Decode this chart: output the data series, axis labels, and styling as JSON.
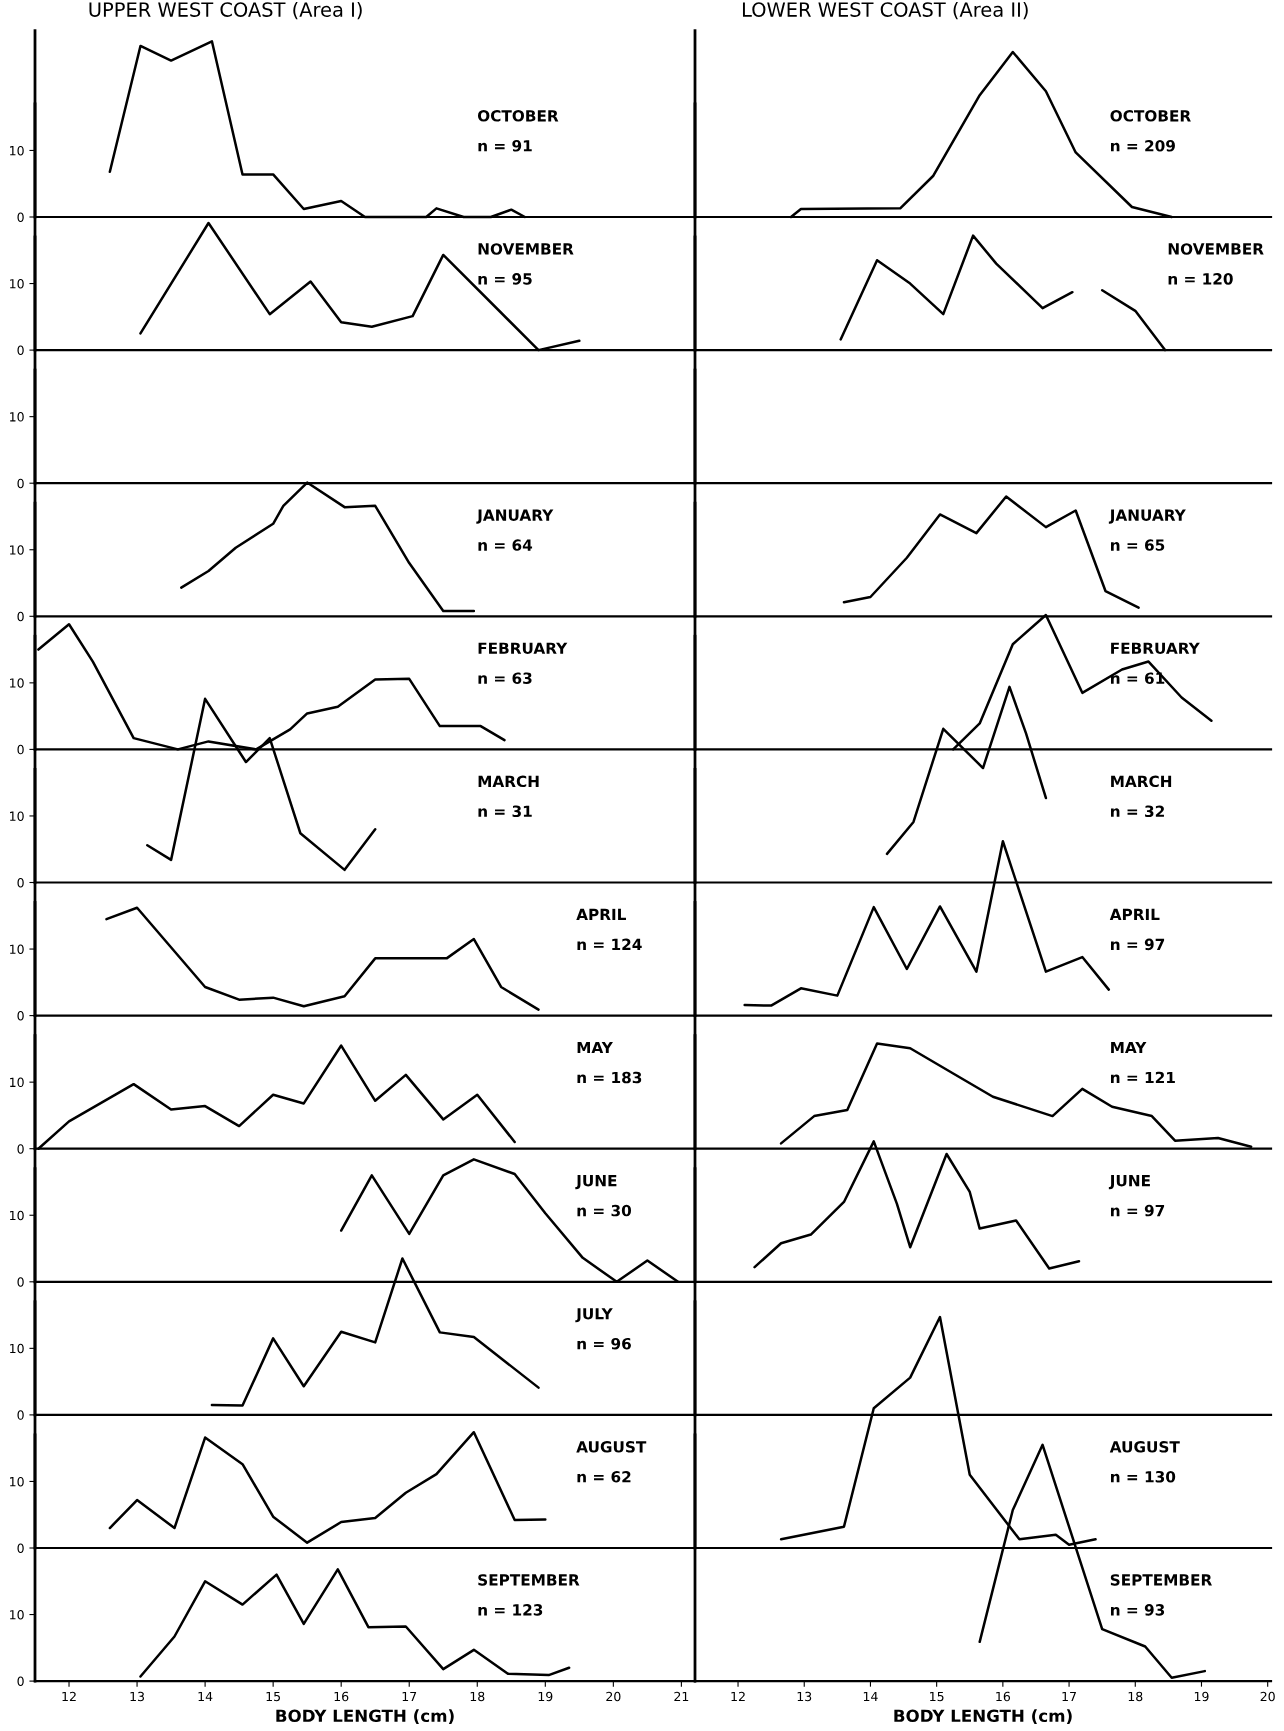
{
  "chart_data": [
    {
      "type": "line",
      "title": "UPPER WEST COAST (Area I)",
      "annotations": [
        "OCTOBER",
        "n = 91"
      ],
      "x": [
        12.6,
        13.05,
        13.5,
        14.1,
        14.55,
        15.0,
        15.45,
        16.0,
        16.35,
        17.25,
        17.4,
        17.8,
        18.2,
        18.5,
        18.7
      ],
      "values": [
        6.8,
        25.7,
        23.5,
        26.4,
        6.4,
        6.4,
        1.2,
        2.4,
        0,
        0,
        1.3,
        0,
        0,
        1.1,
        0
      ],
      "color": "#000000",
      "xlim": [
        11.5,
        21.2
      ],
      "ylim": [
        0,
        28
      ],
      "yticks": [
        0,
        10
      ],
      "tick_labels": "y"
    },
    {
      "type": "line",
      "annotations": [
        "NOVEMBER",
        "n = 95"
      ],
      "x": [
        13.05,
        14.05,
        14.95,
        15.55,
        16.0,
        16.45,
        17.05,
        17.5,
        18.9,
        19.5
      ],
      "values": [
        2.5,
        19.1,
        5.4,
        10.3,
        4.2,
        3.5,
        5.1,
        14.3,
        0,
        1.4
      ],
      "color": "#000000",
      "xlim": [
        11.5,
        21.2
      ],
      "ylim": [
        0,
        37
      ],
      "yticks": [
        0,
        10
      ],
      "tick_labels": "y"
    },
    {
      "type": "line",
      "color": "#000000",
      "xlim": [
        11.5,
        21.2
      ],
      "ylim": [
        0,
        37
      ],
      "yticks": [
        0,
        10
      ],
      "tick_labels": "y"
    },
    {
      "type": "line",
      "annotations": [
        "JANUARY",
        "n = 64"
      ],
      "x": [
        13.65,
        14.05,
        14.45,
        15.0,
        15.15,
        15.5,
        16.05,
        16.5,
        17.0,
        17.5,
        17.95
      ],
      "values": [
        4.3,
        6.8,
        10.3,
        13.9,
        16.6,
        20.1,
        16.4,
        16.6,
        8.0,
        0.8,
        0.8
      ],
      "color": "#000000",
      "xlim": [
        11.5,
        21.2
      ],
      "ylim": [
        0,
        37
      ],
      "yticks": [
        0,
        10
      ],
      "tick_labels": "y"
    },
    {
      "type": "line",
      "annotations": [
        "FEBRUARY",
        "n = 63"
      ],
      "x": [
        11.55,
        12.0,
        12.35,
        12.95,
        13.6,
        14.05,
        14.75,
        15.25,
        15.5,
        15.95,
        16.5,
        17.0,
        17.45,
        18.05,
        18.4
      ],
      "values": [
        15.0,
        18.8,
        13.2,
        1.7,
        0,
        1.2,
        0,
        3.0,
        5.4,
        6.4,
        10.5,
        10.6,
        3.5,
        3.5,
        1.4
      ],
      "color": "#000000",
      "xlim": [
        11.5,
        21.2
      ],
      "ylim": [
        0,
        37
      ],
      "yticks": [
        0,
        10
      ],
      "tick_labels": "y"
    },
    {
      "type": "line",
      "annotations": [
        "MARCH",
        "n = 31"
      ],
      "x": [
        13.15,
        13.5,
        14.0,
        14.6,
        14.95,
        15.4,
        16.05,
        16.5
      ],
      "values": [
        5.6,
        3.4,
        27.6,
        18.1,
        21.7,
        7.4,
        1.9,
        8.0
      ],
      "color": "#000000",
      "xlim": [
        11.5,
        21.2
      ],
      "ylim": [
        0,
        37
      ],
      "yticks": [
        0,
        10
      ],
      "tick_labels": "y"
    },
    {
      "type": "line",
      "annotations": [
        "APRIL",
        "n = 124"
      ],
      "x": [
        12.55,
        13.0,
        14.0,
        14.5,
        15.0,
        15.45,
        16.05,
        16.5,
        17.55,
        17.95,
        18.35,
        18.9
      ],
      "values": [
        14.5,
        16.2,
        4.3,
        2.4,
        2.7,
        1.4,
        2.9,
        8.6,
        8.6,
        11.5,
        4.3,
        0.9
      ],
      "color": "#000000",
      "xlim": [
        11.5,
        21.2
      ],
      "ylim": [
        0,
        37
      ],
      "yticks": [
        0,
        10
      ],
      "tick_labels": "y"
    },
    {
      "type": "line",
      "annotations": [
        "MAY",
        "n = 183"
      ],
      "x": [
        11.55,
        12.0,
        12.95,
        13.5,
        14.0,
        14.5,
        15.0,
        15.45,
        16.0,
        16.5,
        16.95,
        17.5,
        18.0,
        18.55
      ],
      "values": [
        0,
        4.1,
        9.7,
        5.9,
        6.4,
        3.4,
        8.1,
        6.8,
        15.5,
        7.2,
        11.1,
        4.4,
        8.1,
        1.0
      ],
      "color": "#000000",
      "xlim": [
        11.5,
        21.2
      ],
      "ylim": [
        0,
        37
      ],
      "yticks": [
        0,
        10
      ],
      "tick_labels": "y"
    },
    {
      "type": "line",
      "annotations": [
        "JUNE",
        "n = 30"
      ],
      "x": [
        16.0,
        16.45,
        17.0,
        17.5,
        17.95,
        18.55,
        19.0,
        19.55,
        20.05,
        20.5,
        20.95
      ],
      "values": [
        7.7,
        16.0,
        7.2,
        16.0,
        18.4,
        16.2,
        10.3,
        3.6,
        0,
        3.2,
        0
      ],
      "color": "#000000",
      "xlim": [
        11.5,
        21.2
      ],
      "ylim": [
        0,
        37
      ],
      "yticks": [
        0,
        10
      ],
      "tick_labels": "y"
    },
    {
      "type": "line",
      "annotations": [
        "JULY",
        "n = 96"
      ],
      "x": [
        14.1,
        14.55,
        15.0,
        15.45,
        16.0,
        16.5,
        16.9,
        17.45,
        17.95,
        18.9
      ],
      "values": [
        1.5,
        1.4,
        11.5,
        4.3,
        12.5,
        10.9,
        23.5,
        12.4,
        11.7,
        4.1
      ],
      "color": "#000000",
      "xlim": [
        11.5,
        21.2
      ],
      "ylim": [
        0,
        37
      ],
      "yticks": [
        0,
        10
      ],
      "tick_labels": "y"
    },
    {
      "type": "line",
      "annotations": [
        "AUGUST",
        "n = 62"
      ],
      "x": [
        12.6,
        13.0,
        13.55,
        14.0,
        14.55,
        15.0,
        15.5,
        16.0,
        16.5,
        16.95,
        17.4,
        17.95,
        18.55,
        19.0
      ],
      "values": [
        3.0,
        7.2,
        3.0,
        16.6,
        12.6,
        4.7,
        0.8,
        3.9,
        4.5,
        8.3,
        11.1,
        17.4,
        4.2,
        4.3
      ],
      "color": "#000000",
      "xlim": [
        11.5,
        21.2
      ],
      "ylim": [
        0,
        37
      ],
      "yticks": [
        0,
        10
      ],
      "tick_labels": "y"
    },
    {
      "type": "line",
      "annotations": [
        "SEPTEMBER",
        "n = 123"
      ],
      "x": [
        13.05,
        13.55,
        14.0,
        14.55,
        15.05,
        15.45,
        15.95,
        16.4,
        16.95,
        17.5,
        17.95,
        18.45,
        19.05,
        19.35
      ],
      "values": [
        0.7,
        6.7,
        15.0,
        11.5,
        16.0,
        8.6,
        16.8,
        8.1,
        8.2,
        1.8,
        4.7,
        1.1,
        0.9,
        2.0
      ],
      "color": "#000000",
      "xlim": [
        11.5,
        21.2
      ],
      "ylim": [
        0,
        37
      ],
      "yticks": [
        0,
        10
      ],
      "xticks": [
        12,
        13,
        14,
        15,
        16,
        17,
        18,
        19,
        20,
        21
      ],
      "xlabel": "BODY LENGTH (cm)"
    },
    {
      "type": "line",
      "title": "LOWER WEST COAST (Area II)",
      "annotations": [
        "OCTOBER",
        "n = 209"
      ],
      "x": [
        12.8,
        12.95,
        14.45,
        14.95,
        15.65,
        16.15,
        16.65,
        17.1,
        17.95,
        18.55
      ],
      "values": [
        0,
        1.2,
        1.3,
        6.2,
        18.3,
        24.8,
        18.9,
        9.7,
        1.5,
        0
      ],
      "color": "#000000",
      "xlim": [
        11.35,
        20.05
      ],
      "ylim": [
        0,
        28
      ],
      "tick_labels": false
    },
    {
      "type": "line",
      "annotations": [
        "NOVEMBER",
        "n = 120"
      ],
      "x": [
        13.55,
        14.1,
        14.6,
        15.1,
        15.55,
        15.9,
        16.6,
        17.05,
        17.25,
        17.5,
        18.0,
        18.45
      ],
      "values": [
        1.6,
        13.5,
        10.0,
        5.4,
        17.2,
        13.0,
        6.3,
        8.7,
        null,
        9.0,
        5.9,
        0
      ],
      "color": "#000000",
      "xlim": [
        11.35,
        20.05
      ],
      "ylim": [
        0,
        37
      ],
      "tick_labels": false
    },
    {
      "type": "line",
      "color": "#000000",
      "xlim": [
        11.35,
        20.05
      ],
      "ylim": [
        0,
        37
      ],
      "tick_labels": false
    },
    {
      "type": "line",
      "annotations": [
        "JANUARY",
        "n = 65"
      ],
      "x": [
        13.6,
        14.0,
        14.55,
        15.05,
        15.6,
        16.05,
        16.65,
        17.1,
        17.55,
        18.05
      ],
      "values": [
        2.1,
        2.9,
        8.8,
        15.3,
        12.5,
        18.0,
        13.4,
        15.9,
        3.8,
        1.3
      ],
      "color": "#000000",
      "xlim": [
        11.35,
        20.05
      ],
      "ylim": [
        0,
        37
      ],
      "tick_labels": false
    },
    {
      "type": "line",
      "annotations": [
        "FEBRUARY",
        "n = 61"
      ],
      "x": [
        15.25,
        15.65,
        16.15,
        16.65,
        17.2,
        17.8,
        18.2,
        18.7,
        19.15
      ],
      "values": [
        0,
        3.9,
        15.8,
        20.2,
        8.5,
        12.0,
        13.2,
        7.8,
        4.3
      ],
      "color": "#000000",
      "xlim": [
        11.35,
        20.05
      ],
      "ylim": [
        0,
        37
      ],
      "tick_labels": false
    },
    {
      "type": "line",
      "annotations": [
        "MARCH",
        "n = 32"
      ],
      "x": [
        14.25,
        14.65,
        15.1,
        15.7,
        16.1,
        16.35,
        16.65
      ],
      "values": [
        4.3,
        9.1,
        23.1,
        17.2,
        29.4,
        22.4,
        12.7
      ],
      "color": "#000000",
      "xlim": [
        11.35,
        20.05
      ],
      "ylim": [
        0,
        37
      ],
      "tick_labels": false
    },
    {
      "type": "line",
      "annotations": [
        "APRIL",
        "n = 97"
      ],
      "x": [
        12.1,
        12.5,
        12.95,
        13.5,
        14.05,
        14.55,
        15.05,
        15.6,
        16.0,
        16.65,
        17.2,
        17.6
      ],
      "values": [
        1.6,
        1.5,
        4.1,
        3.0,
        16.3,
        7.0,
        16.4,
        6.6,
        26.2,
        6.6,
        8.8,
        3.9
      ],
      "color": "#000000",
      "xlim": [
        11.35,
        20.05
      ],
      "ylim": [
        0,
        37
      ],
      "tick_labels": false
    },
    {
      "type": "line",
      "annotations": [
        "MAY",
        "n = 121"
      ],
      "x": [
        12.65,
        13.15,
        13.65,
        14.1,
        14.6,
        15.25,
        15.85,
        16.75,
        17.2,
        17.65,
        18.25,
        18.6,
        19.25,
        19.75
      ],
      "values": [
        0.8,
        4.9,
        5.8,
        15.8,
        15.1,
        11.3,
        7.8,
        4.9,
        9.0,
        6.3,
        4.9,
        1.2,
        1.6,
        0.3
      ],
      "color": "#000000",
      "xlim": [
        11.35,
        20.05
      ],
      "ylim": [
        0,
        37
      ],
      "tick_labels": false
    },
    {
      "type": "line",
      "annotations": [
        "JUNE",
        "n = 97"
      ],
      "x": [
        12.25,
        12.65,
        13.1,
        13.6,
        14.05,
        14.4,
        14.6,
        15.15,
        15.5,
        15.65,
        16.2,
        16.7,
        17.15
      ],
      "values": [
        2.2,
        5.8,
        7.1,
        12.0,
        21.1,
        11.7,
        5.2,
        19.2,
        13.5,
        8.0,
        9.2,
        2.0,
        3.1
      ],
      "color": "#000000",
      "xlim": [
        11.35,
        20.05
      ],
      "ylim": [
        0,
        37
      ],
      "tick_labels": false
    },
    {
      "type": "line",
      "color": "#000000",
      "xlim": [
        11.35,
        20.05
      ],
      "ylim": [
        0,
        37
      ],
      "tick_labels": false
    },
    {
      "type": "line",
      "annotations": [
        "AUGUST",
        "n = 130"
      ],
      "x": [
        12.65,
        13.6,
        14.05,
        14.6,
        15.05,
        15.5,
        16.25,
        16.8,
        17.0,
        17.4
      ],
      "values": [
        1.3,
        3.2,
        21.0,
        25.6,
        34.7,
        11.0,
        1.3,
        2.0,
        0.5,
        1.3
      ],
      "color": "#000000",
      "xlim": [
        11.35,
        20.05
      ],
      "ylim": [
        0,
        37
      ],
      "tick_labels": false
    },
    {
      "type": "line",
      "annotations": [
        "SEPTEMBER",
        "n = 93"
      ],
      "x": [
        15.65,
        16.15,
        16.6,
        17.5,
        18.15,
        18.55,
        19.05
      ],
      "values": [
        5.9,
        25.7,
        35.5,
        7.8,
        5.2,
        0.5,
        1.5
      ],
      "color": "#000000",
      "xlim": [
        11.35,
        20.05
      ],
      "ylim": [
        0,
        37
      ],
      "xticks": [
        12,
        13,
        14,
        15,
        16,
        17,
        18,
        19,
        20
      ],
      "xlabel": "BODY LENGTH (cm)",
      "tick_labels": "x"
    }
  ]
}
